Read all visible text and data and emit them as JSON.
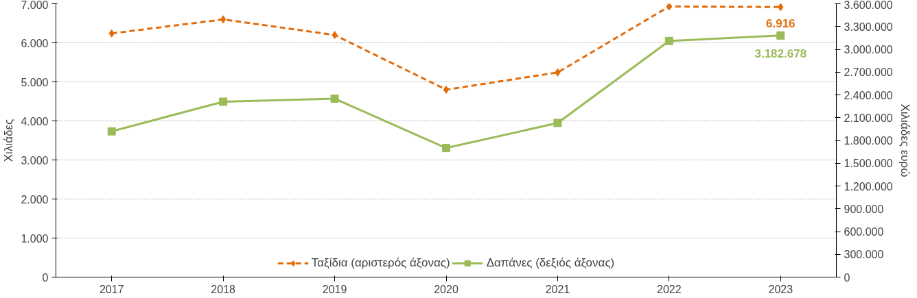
{
  "chart_data": {
    "type": "line",
    "ylabel": "Χιλιάδες",
    "y2label": "Χιλιάδες ευρώ",
    "categories": [
      "2017",
      "2018",
      "2019",
      "2020",
      "2021",
      "2022",
      "2023"
    ],
    "series": [
      {
        "name": "Ταξίδια (αριστερός άξονας)",
        "color": "#e36c09",
        "marker": "diamond",
        "line_style": "dashed",
        "values": [
          6240,
          6600,
          6200,
          4800,
          5240,
          6930,
          6916
        ],
        "value_labels": [
          null,
          null,
          null,
          null,
          null,
          null,
          "6.916"
        ]
      },
      {
        "name": "Δαπάνες (δεξιός άξονας)",
        "color": "#9bbb59",
        "marker": "square",
        "line_style": "solid",
        "axis": "y2",
        "values": [
          1920000,
          2310000,
          2350000,
          1700000,
          2030000,
          3110000,
          3182678
        ],
        "value_labels": [
          null,
          null,
          null,
          null,
          null,
          null,
          "3.182.678"
        ]
      }
    ],
    "ylim": [
      0,
      7000
    ],
    "yticks": [
      0,
      {
        "value": 1000,
        "label": "1.000"
      },
      {
        "value": 2000,
        "label": "2.000"
      },
      {
        "value": 3000,
        "label": "3.000"
      },
      {
        "value": 4000,
        "label": "4.000"
      },
      {
        "value": 5000,
        "label": "5.000"
      },
      {
        "value": 6000,
        "label": "6.000"
      },
      {
        "value": 7000,
        "label": "7.000"
      }
    ],
    "y2lim": [
      0,
      3600000
    ],
    "y2ticks": [
      0,
      {
        "value": 300000,
        "label": "300.000"
      },
      {
        "value": 600000,
        "label": "600.000"
      },
      {
        "value": 900000,
        "label": "900.000"
      },
      {
        "value": 1200000,
        "label": "1.200.000"
      },
      {
        "value": 1500000,
        "label": "1.500.000"
      },
      {
        "value": 1800000,
        "label": "1.800.000"
      },
      {
        "value": 2100000,
        "label": "2.100.000"
      },
      {
        "value": 2400000,
        "label": "2.400.000"
      },
      {
        "value": 2700000,
        "label": "2.700.000"
      },
      {
        "value": 3000000,
        "label": "3.000.000"
      },
      {
        "value": 3300000,
        "label": "3.300.000"
      },
      {
        "value": 3600000,
        "label": "3.600.000"
      }
    ],
    "grid": "y",
    "legend": "bottom"
  }
}
